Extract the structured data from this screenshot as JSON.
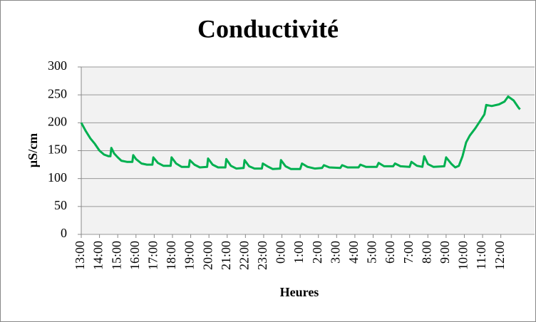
{
  "chart_data": {
    "type": "line",
    "title": "Conductivité",
    "ylabel": "µS/cm",
    "xlabel": "Heures",
    "ylim": [
      0,
      300
    ],
    "yticks": [
      0,
      50,
      100,
      150,
      200,
      250,
      300
    ],
    "grid": true,
    "xlim": [
      0,
      24.85
    ],
    "xticks": [
      {
        "value": 0,
        "label": "13:00"
      },
      {
        "value": 1,
        "label": "14:00"
      },
      {
        "value": 2,
        "label": "15:00"
      },
      {
        "value": 3,
        "label": "16:00"
      },
      {
        "value": 4,
        "label": "17:00"
      },
      {
        "value": 5,
        "label": "18:00"
      },
      {
        "value": 6,
        "label": "19:00"
      },
      {
        "value": 7,
        "label": "20:00"
      },
      {
        "value": 8,
        "label": "21:00"
      },
      {
        "value": 9,
        "label": "22:00"
      },
      {
        "value": 10,
        "label": "23:00"
      },
      {
        "value": 11,
        "label": "0:00"
      },
      {
        "value": 12,
        "label": "1:00"
      },
      {
        "value": 13,
        "label": "2:00"
      },
      {
        "value": 14,
        "label": "3:00"
      },
      {
        "value": 15,
        "label": "4:00"
      },
      {
        "value": 16,
        "label": "5:00"
      },
      {
        "value": 17,
        "label": "6:00"
      },
      {
        "value": 18,
        "label": "7:00"
      },
      {
        "value": 19,
        "label": "8:00"
      },
      {
        "value": 20,
        "label": "9:00"
      },
      {
        "value": 21,
        "label": "10:00"
      },
      {
        "value": 22,
        "label": "11:00"
      },
      {
        "value": 23,
        "label": "12:00"
      }
    ],
    "x": [
      0,
      0.25,
      0.5,
      0.75,
      1.0,
      1.25,
      1.5,
      1.6,
      1.65,
      1.8,
      2.0,
      2.2,
      2.5,
      2.8,
      2.85,
      3.0,
      3.3,
      3.6,
      3.9,
      3.95,
      4.2,
      4.5,
      4.9,
      4.95,
      5.2,
      5.5,
      5.9,
      5.95,
      6.2,
      6.5,
      6.9,
      6.95,
      7.2,
      7.5,
      7.9,
      7.95,
      8.2,
      8.5,
      8.9,
      8.95,
      9.2,
      9.5,
      9.9,
      9.95,
      10.2,
      10.5,
      10.9,
      10.95,
      11.2,
      11.5,
      12.0,
      12.1,
      12.4,
      12.8,
      13.2,
      13.3,
      13.6,
      14.2,
      14.3,
      14.6,
      15.2,
      15.3,
      15.6,
      16.2,
      16.3,
      16.6,
      17.1,
      17.2,
      17.5,
      18.0,
      18.1,
      18.4,
      18.7,
      18.8,
      19.0,
      19.3,
      19.9,
      20.0,
      20.3,
      20.5,
      20.7,
      20.9,
      21.1,
      21.3,
      21.6,
      21.9,
      22.1,
      22.2,
      22.5,
      22.9,
      23.2,
      23.4,
      23.7,
      23.95,
      24.05
    ],
    "series": [
      {
        "name": "Conductivité",
        "color": "#00b050",
        "values": [
          200,
          185,
          172,
          162,
          150,
          143,
          140,
          140,
          155,
          145,
          138,
          132,
          130,
          130,
          142,
          135,
          127,
          125,
          125,
          138,
          128,
          123,
          123,
          138,
          127,
          121,
          121,
          133,
          125,
          120,
          121,
          136,
          125,
          120,
          120,
          135,
          123,
          118,
          119,
          133,
          122,
          118,
          118,
          127,
          122,
          117,
          118,
          133,
          122,
          117,
          117,
          127,
          121,
          118,
          119,
          124,
          120,
          119,
          124,
          120,
          120,
          125,
          121,
          121,
          128,
          122,
          122,
          127,
          122,
          121,
          130,
          123,
          121,
          140,
          126,
          121,
          122,
          138,
          126,
          120,
          123,
          140,
          165,
          177,
          190,
          205,
          215,
          232,
          230,
          233,
          238,
          247,
          240,
          228,
          224
        ]
      }
    ]
  }
}
